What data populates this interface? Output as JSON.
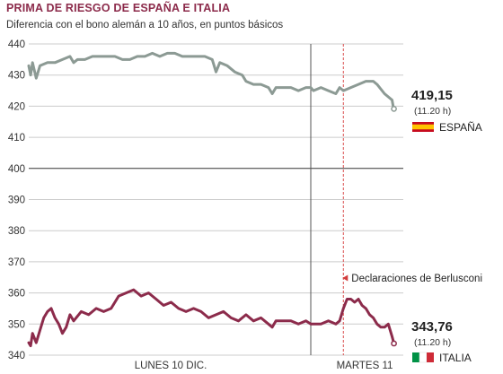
{
  "chart_data": {
    "type": "line",
    "title": "PRIMA DE RIESGO DE ESPAÑA E ITALIA",
    "subtitle": "Diferencia con el bono alemán a 10 años, en puntos básicos",
    "ylim": [
      340,
      440
    ],
    "y_ticks": [
      "440",
      "430",
      "420",
      "410",
      "400",
      "390",
      "380",
      "370",
      "360",
      "350",
      "340"
    ],
    "x_labels": [
      "LUNES 10 DIC.",
      "MARTES 11"
    ],
    "x_range": [
      0,
      100
    ],
    "day_divider_x": 75.3,
    "annotation": {
      "text": "Declaraciones de Berlusconi",
      "x": 84.0
    },
    "series": [
      {
        "name": "ESPAÑA",
        "color": "#8c9a94",
        "last_value": "419,15",
        "last_time": "(11.20 h)",
        "points": [
          [
            0,
            433
          ],
          [
            0.5,
            430
          ],
          [
            1.0,
            434
          ],
          [
            2,
            429
          ],
          [
            3,
            433
          ],
          [
            5,
            434
          ],
          [
            7,
            434
          ],
          [
            9,
            435
          ],
          [
            11,
            436
          ],
          [
            12,
            434
          ],
          [
            13,
            435
          ],
          [
            15,
            435
          ],
          [
            17,
            436
          ],
          [
            19,
            436
          ],
          [
            21,
            436
          ],
          [
            23,
            436
          ],
          [
            25,
            435
          ],
          [
            27,
            435
          ],
          [
            29,
            436
          ],
          [
            31,
            436
          ],
          [
            33,
            437
          ],
          [
            35,
            436
          ],
          [
            37,
            437
          ],
          [
            39,
            437
          ],
          [
            41,
            436
          ],
          [
            43,
            436
          ],
          [
            45,
            436
          ],
          [
            47,
            436
          ],
          [
            49,
            435
          ],
          [
            50,
            431
          ],
          [
            51,
            434
          ],
          [
            53,
            433
          ],
          [
            55,
            431
          ],
          [
            57,
            430
          ],
          [
            58,
            428
          ],
          [
            60,
            427
          ],
          [
            62,
            427
          ],
          [
            64,
            426
          ],
          [
            65,
            424
          ],
          [
            66,
            426
          ],
          [
            68,
            426
          ],
          [
            70,
            426
          ],
          [
            72,
            425
          ],
          [
            74,
            426
          ],
          [
            75.3,
            426
          ],
          [
            76,
            425
          ],
          [
            78,
            426
          ],
          [
            80,
            425
          ],
          [
            82,
            424
          ],
          [
            83,
            426
          ],
          [
            84,
            425
          ],
          [
            86,
            426
          ],
          [
            88,
            427
          ],
          [
            90,
            428
          ],
          [
            92,
            428
          ],
          [
            93,
            427
          ],
          [
            95,
            424
          ],
          [
            96,
            423
          ],
          [
            97,
            422
          ],
          [
            97.3,
            420
          ],
          [
            97.5,
            419.15
          ]
        ]
      },
      {
        "name": "ITALIA",
        "color": "#8c2b4b",
        "last_value": "343,76",
        "last_time": "(11.20 h)",
        "points": [
          [
            0,
            344
          ],
          [
            0.5,
            343
          ],
          [
            1,
            347
          ],
          [
            2,
            344
          ],
          [
            3,
            348
          ],
          [
            4,
            352
          ],
          [
            5,
            354
          ],
          [
            6,
            355
          ],
          [
            7,
            352
          ],
          [
            8,
            350
          ],
          [
            9,
            347
          ],
          [
            10,
            349
          ],
          [
            11,
            353
          ],
          [
            12,
            351
          ],
          [
            14,
            354
          ],
          [
            16,
            353
          ],
          [
            18,
            355
          ],
          [
            20,
            354
          ],
          [
            22,
            355
          ],
          [
            24,
            359
          ],
          [
            26,
            360
          ],
          [
            28,
            361
          ],
          [
            30,
            359
          ],
          [
            32,
            360
          ],
          [
            34,
            358
          ],
          [
            36,
            356
          ],
          [
            38,
            357
          ],
          [
            40,
            355
          ],
          [
            42,
            354
          ],
          [
            44,
            355
          ],
          [
            46,
            354
          ],
          [
            48,
            352
          ],
          [
            50,
            353
          ],
          [
            52,
            354
          ],
          [
            54,
            352
          ],
          [
            56,
            351
          ],
          [
            58,
            353
          ],
          [
            60,
            351
          ],
          [
            62,
            352
          ],
          [
            64,
            350
          ],
          [
            65,
            349
          ],
          [
            66,
            351
          ],
          [
            68,
            351
          ],
          [
            70,
            351
          ],
          [
            72,
            350
          ],
          [
            74,
            351
          ],
          [
            75.3,
            350
          ],
          [
            76,
            350
          ],
          [
            78,
            350
          ],
          [
            80,
            351
          ],
          [
            82,
            350
          ],
          [
            83,
            351
          ],
          [
            84,
            355
          ],
          [
            85,
            358
          ],
          [
            86,
            358
          ],
          [
            87,
            357
          ],
          [
            88,
            358
          ],
          [
            89,
            356
          ],
          [
            90,
            355
          ],
          [
            91,
            353
          ],
          [
            92,
            352
          ],
          [
            93,
            350
          ],
          [
            94,
            349
          ],
          [
            95,
            349
          ],
          [
            96,
            350
          ],
          [
            97,
            346
          ],
          [
            97.5,
            343.76
          ]
        ]
      }
    ]
  }
}
